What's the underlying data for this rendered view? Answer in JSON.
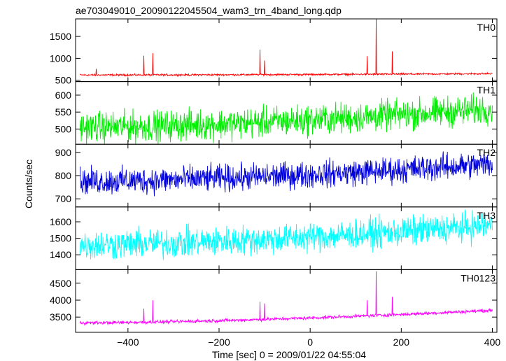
{
  "chart_data": {
    "type": "line",
    "title": "ae703049010_20090122045504_wam3_trn_4band_long.qdp",
    "xlabel": "Time [sec] 0 = 2009/01/22 04:55:04",
    "ylabel": "Counts/sec",
    "xlim": [
      -515,
      410
    ],
    "x_ticks": [
      -400,
      -200,
      0,
      200,
      400
    ],
    "x_tick_labels": [
      "−400",
      "−200",
      "0",
      "200",
      "400"
    ],
    "data_x_range": [
      -505,
      400
    ],
    "panels": [
      {
        "name": "TH0",
        "color": "#ff0000",
        "ylim": [
          470,
          1900
        ],
        "yticks": [
          500,
          1000,
          1500
        ],
        "base_start": 620,
        "base_end": 650,
        "noise": 25,
        "spikes": [
          [
            -470,
            760
          ],
          [
            -365,
            1060
          ],
          [
            -345,
            1120
          ],
          [
            -110,
            1200
          ],
          [
            -100,
            950
          ],
          [
            125,
            1050
          ],
          [
            145,
            1900
          ],
          [
            180,
            1160
          ]
        ]
      },
      {
        "name": "TH1",
        "color": "#00ee00",
        "ylim": [
          455,
          640
        ],
        "yticks": [
          500,
          550,
          600
        ],
        "base_start": 505,
        "base_end": 560,
        "noise": 55,
        "spikes": []
      },
      {
        "name": "TH2",
        "color": "#0000dd",
        "ylim": [
          665,
          935
        ],
        "yticks": [
          700,
          800,
          900
        ],
        "base_start": 775,
        "base_end": 850,
        "noise": 70,
        "spikes": []
      },
      {
        "name": "TH3",
        "color": "#00ffff",
        "ylim": [
          1310,
          1690
        ],
        "yticks": [
          1400,
          1500,
          1600
        ],
        "base_start": 1460,
        "base_end": 1580,
        "noise": 110,
        "spikes": []
      },
      {
        "name": "TH0123",
        "color": "#ff00ff",
        "ylim": [
          3050,
          4900
        ],
        "yticks": [
          3500,
          4000,
          4500
        ],
        "base_start": 3330,
        "base_end": 3700,
        "noise": 60,
        "spikes": [
          [
            -365,
            3750
          ],
          [
            -345,
            4000
          ],
          [
            -110,
            3950
          ],
          [
            -100,
            3900
          ],
          [
            125,
            4000
          ],
          [
            145,
            4850
          ],
          [
            180,
            4100
          ]
        ]
      }
    ]
  }
}
